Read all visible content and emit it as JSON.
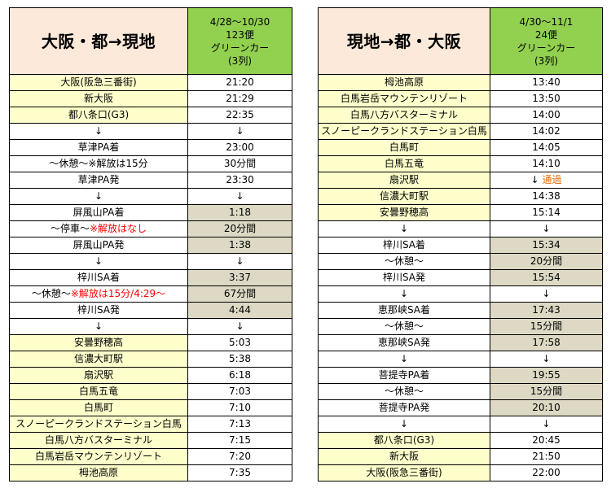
{
  "left": {
    "title": "大阪・都→現地",
    "header": {
      "date_range": "4/28〜10/30",
      "service": "123便",
      "seat_class": "グリーンカー",
      "seat_layout": "(3列)"
    },
    "rows": [
      {
        "stop": "大阪(阪急三番街)",
        "time": "21:20",
        "stop_bg": "y",
        "time_bg": "w"
      },
      {
        "stop": "新大阪",
        "time": "21:29",
        "stop_bg": "y",
        "time_bg": "w"
      },
      {
        "stop": "都八条口(G3)",
        "time": "22:35",
        "stop_bg": "y",
        "time_bg": "w"
      },
      {
        "stop": "↓",
        "time": "↓",
        "stop_bg": "w",
        "time_bg": "w"
      },
      {
        "stop": "草津PA着",
        "time": "23:00",
        "stop_bg": "w",
        "time_bg": "w"
      },
      {
        "stop": "〜休憩〜",
        "stop_note": "※解放は15分",
        "time": "30分間",
        "stop_bg": "w",
        "time_bg": "w"
      },
      {
        "stop": "草津PA発",
        "time": "23:30",
        "stop_bg": "w",
        "time_bg": "w"
      },
      {
        "stop": "↓",
        "time": "↓",
        "stop_bg": "w",
        "time_bg": "w"
      },
      {
        "stop": "屏風山PA着",
        "time": "1:18",
        "stop_bg": "w",
        "time_bg": "g"
      },
      {
        "stop": "〜停車〜",
        "stop_note": "※解放はなし",
        "note_color": "red",
        "time": "20分間",
        "stop_bg": "w",
        "time_bg": "g"
      },
      {
        "stop": "屏風山PA発",
        "time": "1:38",
        "stop_bg": "w",
        "time_bg": "g"
      },
      {
        "stop": "↓",
        "time": "↓",
        "stop_bg": "w",
        "time_bg": "w"
      },
      {
        "stop": "梓川SA着",
        "time": "3:37",
        "stop_bg": "w",
        "time_bg": "g"
      },
      {
        "stop": "〜休憩〜",
        "stop_note": "※解放は15分/4:29〜",
        "note_color": "red",
        "time": "67分間",
        "stop_bg": "w",
        "time_bg": "g"
      },
      {
        "stop": "梓川SA発",
        "time": "4:44",
        "stop_bg": "w",
        "time_bg": "g"
      },
      {
        "stop": "↓",
        "time": "↓",
        "stop_bg": "w",
        "time_bg": "w"
      },
      {
        "stop": "安曇野穂高",
        "time": "5:03",
        "stop_bg": "y",
        "time_bg": "w"
      },
      {
        "stop": "信濃大町駅",
        "time": "5:38",
        "stop_bg": "y",
        "time_bg": "w"
      },
      {
        "stop": "扇沢駅",
        "time": "6:18",
        "stop_bg": "y",
        "time_bg": "w"
      },
      {
        "stop": "白馬五竜",
        "time": "7:03",
        "stop_bg": "y",
        "time_bg": "w"
      },
      {
        "stop": "白馬町",
        "time": "7:10",
        "stop_bg": "y",
        "time_bg": "w"
      },
      {
        "stop": "スノーピークランドステーション白馬",
        "time": "7:13",
        "stop_bg": "y",
        "time_bg": "w"
      },
      {
        "stop": "白馬八方バスターミナル",
        "time": "7:15",
        "stop_bg": "y",
        "time_bg": "w"
      },
      {
        "stop": "白馬岩岳マウンテンリゾート",
        "time": "7:20",
        "stop_bg": "y",
        "time_bg": "w"
      },
      {
        "stop": "栂池高原",
        "time": "7:35",
        "stop_bg": "y",
        "time_bg": "w"
      }
    ]
  },
  "right": {
    "title": "現地→都・大阪",
    "header": {
      "date_range": "4/30〜11/1",
      "service": "24便",
      "seat_class": "グリーンカー",
      "seat_layout": "(3列)"
    },
    "rows": [
      {
        "stop": "栂池高原",
        "time": "13:40",
        "stop_bg": "y",
        "time_bg": "w"
      },
      {
        "stop": "白馬岩岳マウンテンリゾート",
        "time": "13:50",
        "stop_bg": "y",
        "time_bg": "w"
      },
      {
        "stop": "白馬八方バスターミナル",
        "time": "14:00",
        "stop_bg": "y",
        "time_bg": "w"
      },
      {
        "stop": "スノーピークランドステーション白馬",
        "time": "14:02",
        "stop_bg": "y",
        "time_bg": "w"
      },
      {
        "stop": "白馬町",
        "time": "14:05",
        "stop_bg": "y",
        "time_bg": "w"
      },
      {
        "stop": "白馬五竜",
        "time": "14:10",
        "stop_bg": "y",
        "time_bg": "w"
      },
      {
        "stop": "扇沢駅",
        "time": "↓",
        "time_note": "通過",
        "stop_bg": "y",
        "time_bg": "w"
      },
      {
        "stop": "信濃大町駅",
        "time": "14:38",
        "stop_bg": "y",
        "time_bg": "w"
      },
      {
        "stop": "安曇野穂高",
        "time": "15:14",
        "stop_bg": "y",
        "time_bg": "w"
      },
      {
        "stop": "↓",
        "time": "↓",
        "stop_bg": "w",
        "time_bg": "w"
      },
      {
        "stop": "梓川SA着",
        "time": "15:34",
        "stop_bg": "w",
        "time_bg": "g"
      },
      {
        "stop": "〜休憩〜",
        "time": "20分間",
        "stop_bg": "w",
        "time_bg": "g"
      },
      {
        "stop": "梓川SA発",
        "time": "15:54",
        "stop_bg": "w",
        "time_bg": "g"
      },
      {
        "stop": "↓",
        "time": "↓",
        "stop_bg": "w",
        "time_bg": "w"
      },
      {
        "stop": "恵那峡SA着",
        "time": "17:43",
        "stop_bg": "w",
        "time_bg": "g"
      },
      {
        "stop": "〜休憩〜",
        "time": "15分間",
        "stop_bg": "w",
        "time_bg": "g"
      },
      {
        "stop": "恵那峡SA発",
        "time": "17:58",
        "stop_bg": "w",
        "time_bg": "g"
      },
      {
        "stop": "↓",
        "time": "↓",
        "stop_bg": "w",
        "time_bg": "w"
      },
      {
        "stop": "菩提寺PA着",
        "time": "19:55",
        "stop_bg": "w",
        "time_bg": "g"
      },
      {
        "stop": "〜休憩〜",
        "time": "15分間",
        "stop_bg": "w",
        "time_bg": "g"
      },
      {
        "stop": "菩提寺PA発",
        "time": "20:10",
        "stop_bg": "w",
        "time_bg": "g"
      },
      {
        "stop": "↓",
        "time": "↓",
        "stop_bg": "w",
        "time_bg": "w"
      },
      {
        "stop": "都八条口(G3)",
        "time": "20:45",
        "stop_bg": "y",
        "time_bg": "w"
      },
      {
        "stop": "新大阪",
        "time": "21:50",
        "stop_bg": "y",
        "time_bg": "w"
      },
      {
        "stop": "大阪(阪急三番街)",
        "time": "22:00",
        "stop_bg": "y",
        "time_bg": "w"
      }
    ]
  },
  "colors": {
    "title_bg": "#fde9d9",
    "header_bg": "#92d050",
    "stop_bg": "#ffffcc",
    "rest_bg": "#ddd9c4",
    "note_red": "#ff0000",
    "note_orange": "#e26b0a"
  }
}
